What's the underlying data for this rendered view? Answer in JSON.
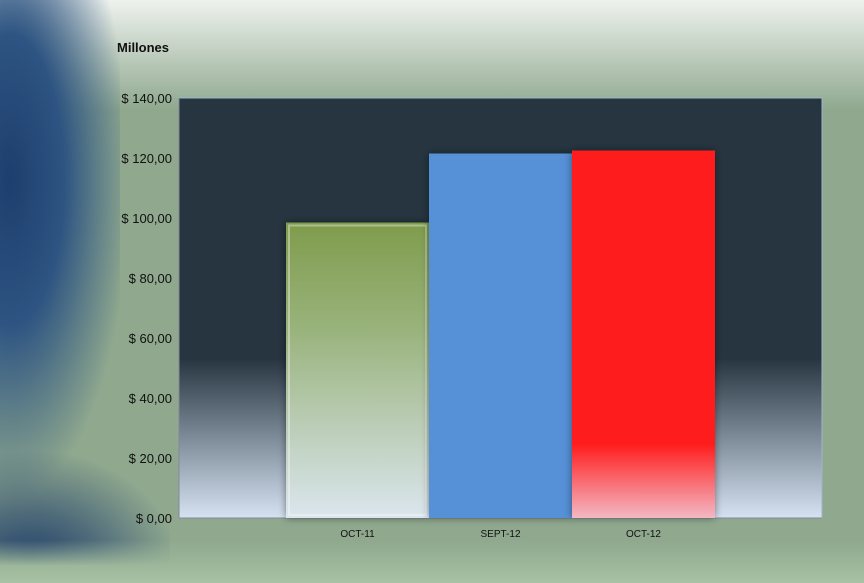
{
  "chart_data": {
    "type": "bar",
    "title": "",
    "ylabel": "Millones",
    "xlabel": "",
    "categories": [
      "OCT-11",
      "SEPT-12",
      "OCT-12"
    ],
    "values": [
      98.5,
      121.5,
      122.5
    ],
    "ylim": [
      0,
      140
    ],
    "yticks": [
      0,
      20,
      40,
      60,
      80,
      100,
      120,
      140
    ],
    "ytick_labels": [
      "$ 0,00",
      "$ 20,00",
      "$ 40,00",
      "$ 60,00",
      "$ 80,00",
      "$ 100,00",
      "$ 120,00",
      "$ 140,00"
    ],
    "bar_colors": [
      "#8aa55a",
      "#5690d6",
      "#ff2020"
    ],
    "plot_background": "#263540",
    "grid": false,
    "legend": "none"
  }
}
